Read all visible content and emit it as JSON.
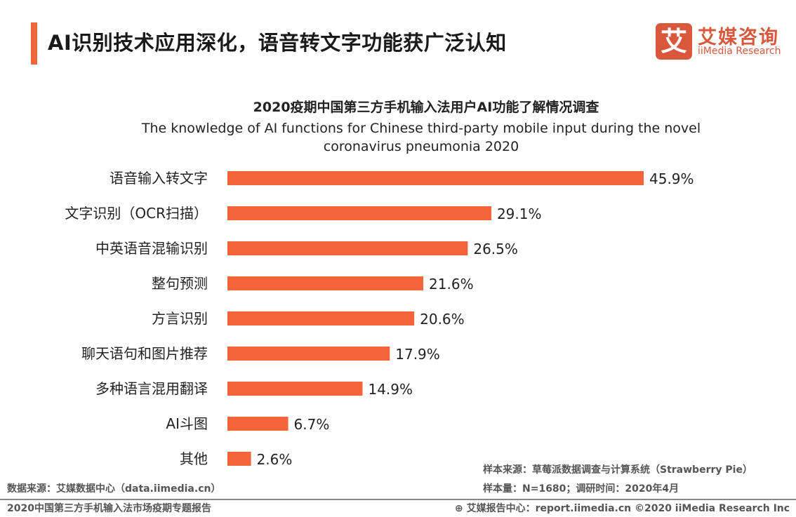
{
  "header": {
    "title": "AI识别技术应用深化，语音转文字功能获广泛认知",
    "logo_cn": "艾媒咨询",
    "logo_en": "iiMedia Research",
    "logo_mark": "艾",
    "accent_color": "#f0663a"
  },
  "chart_data": {
    "type": "bar",
    "orientation": "horizontal",
    "title": "2020疫期中国第三方手机输入法用户AI功能了解情况调查",
    "subtitle": "The knowledge of AI functions for Chinese third-party mobile input during  the novel coronavirus pneumonia 2020",
    "categories": [
      "语音输入转文字",
      "文字识别（OCR扫描）",
      "中英语音混输识别",
      "整句预测",
      "方言识别",
      "聊天语句和图片推荐",
      "多种语言混用翻译",
      "AI斗图",
      "其他"
    ],
    "values": [
      45.9,
      29.1,
      26.5,
      21.6,
      20.6,
      17.9,
      14.9,
      6.7,
      2.6
    ],
    "labels": [
      "45.9%",
      "29.1%",
      "26.5%",
      "21.6%",
      "20.6%",
      "17.9%",
      "14.9%",
      "6.7%",
      "2.6%"
    ],
    "unit": "%",
    "bar_color": "#f4643a",
    "grid": false
  },
  "footer": {
    "sample_source": "样本来源：草莓派数据调查与计算系统（Strawberry  Pie）",
    "sample_size": "样本量：N=1680；调研时间：2020年4月",
    "data_source": "数据来源：艾媒数据中心（data.iimedia.cn）",
    "report_name": "2020中国第三方手机输入法市场疫期专题报告",
    "report_center": "艾媒报告中心：report.iimedia.cn   ©2020  iiMedia Research  Inc"
  }
}
